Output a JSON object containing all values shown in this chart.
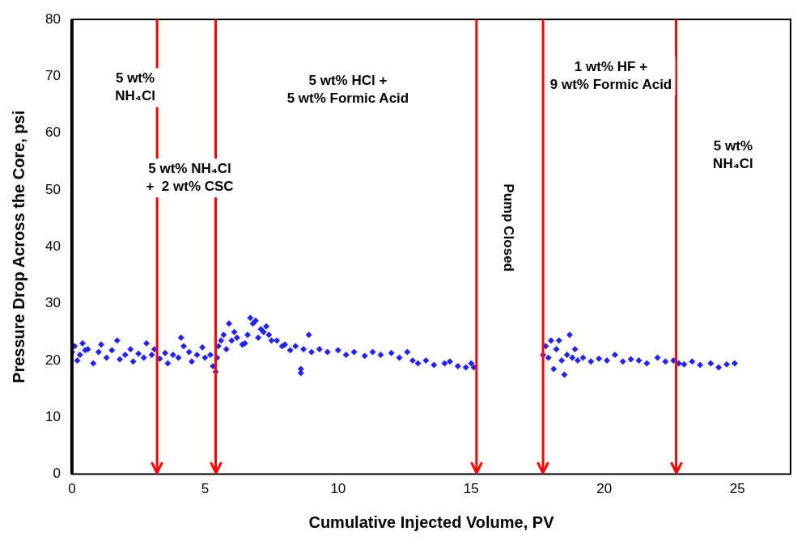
{
  "chart_data": {
    "type": "scatter",
    "xlabel": "Cumulative Injected Volume, PV",
    "ylabel": "Pressure Drop Across the Core, psi",
    "xlim": [
      0,
      27
    ],
    "xticks": [
      0,
      5,
      10,
      15,
      20,
      25
    ],
    "ylim": [
      0,
      80
    ],
    "yticks": [
      0,
      10,
      20,
      30,
      40,
      50,
      60,
      70,
      80
    ],
    "grid": false,
    "legend": false,
    "marker": "diamond",
    "series": [
      {
        "color": "#2424e8",
        "x": [
          0,
          0.1,
          0.2,
          0.3,
          0.4,
          0.5,
          0.6,
          0.8,
          1,
          1.1,
          1.3,
          1.5,
          1.7,
          1.8,
          2,
          2.2,
          2.3,
          2.5,
          2.7,
          2.8,
          3,
          3.1,
          3.3,
          3.5,
          3.6,
          3.8,
          4,
          4.1,
          4.2,
          4.4,
          4.5,
          4.7,
          4.9,
          5,
          5.2,
          5.3,
          5.4,
          5.45,
          5.5,
          5.6,
          5.7,
          5.8,
          5.9,
          6,
          6.1,
          6.2,
          6.4,
          6.5,
          6.6,
          6.7,
          6.8,
          6.9,
          7,
          7.1,
          7.2,
          7.3,
          7.4,
          7.5,
          7.7,
          7.9,
          8,
          8.2,
          8.4,
          8.6,
          8.6,
          8.7,
          8.9,
          9,
          9.3,
          9.6,
          10,
          10.3,
          10.6,
          11,
          11.3,
          11.6,
          12,
          12.3,
          12.6,
          12.8,
          13,
          13.3,
          13.6,
          14,
          14.2,
          14.5,
          14.8,
          15,
          15.1,
          17.7,
          17.8,
          17.9,
          18,
          18.1,
          18.2,
          18.3,
          18.4,
          18.5,
          18.6,
          18.7,
          18.8,
          18.9,
          19,
          19.2,
          19.5,
          19.8,
          20.1,
          20.4,
          20.7,
          21,
          21.3,
          21.6,
          22,
          22.3,
          22.6,
          22.8,
          23,
          23.3,
          23.6,
          24,
          24.3,
          24.6,
          24.9
        ],
        "values": [
          21.5,
          22.5,
          20,
          21,
          23,
          21.8,
          22,
          19.5,
          21.5,
          22.8,
          20.5,
          21.8,
          23.5,
          20.2,
          21,
          22,
          19.8,
          21.2,
          20.5,
          23,
          21,
          22,
          20.3,
          21.3,
          19.5,
          21,
          20.5,
          24,
          22.5,
          21.5,
          19.8,
          21,
          22.3,
          20.5,
          21,
          19,
          18,
          20.5,
          22.5,
          23.5,
          24.5,
          22,
          26.5,
          23.5,
          25,
          24,
          22.8,
          23,
          24.5,
          27.5,
          26.5,
          27,
          24,
          25.5,
          25,
          26,
          24.5,
          23.5,
          23.5,
          22.5,
          22.8,
          21.8,
          22.5,
          18.5,
          17.8,
          22,
          24.5,
          21.5,
          22,
          21.5,
          21.8,
          21,
          21.5,
          20.8,
          21.5,
          21,
          21.3,
          20.5,
          21.5,
          20,
          19.5,
          20,
          19.2,
          19.5,
          19.8,
          19,
          18.8,
          19.5,
          18.8,
          21,
          22.5,
          20.5,
          23.5,
          18.5,
          22,
          23.5,
          20,
          17.5,
          21,
          24.5,
          20.5,
          22,
          20,
          20.5,
          19.8,
          20.3,
          20,
          21,
          19.8,
          20.2,
          20,
          19.5,
          20.5,
          19.8,
          20,
          19.5,
          19.3,
          19.8,
          19.2,
          19.5,
          18.8,
          19.3,
          19.5
        ]
      }
    ],
    "ref_lines": [
      {
        "axis": "x",
        "value": 3.2,
        "color": "#ff0000"
      },
      {
        "axis": "x",
        "value": 5.4,
        "color": "#ff0000"
      },
      {
        "axis": "x",
        "value": 15.2,
        "color": "#ff0000"
      },
      {
        "axis": "x",
        "value": 17.7,
        "color": "#ff0000"
      },
      {
        "axis": "x",
        "value": 22.7,
        "color": "#ff0000"
      }
    ],
    "annotations": [
      "5 wt%\nNH₄Cl",
      "5 wt% NH₄Cl\n+  2 wt% CSC",
      "5 wt% HCl +\n5 wt% Formic Acid",
      "Pump Closed",
      "1 wt% HF +\n9 wt% Formic Acid",
      "5 wt%\nNH₄Cl"
    ]
  }
}
